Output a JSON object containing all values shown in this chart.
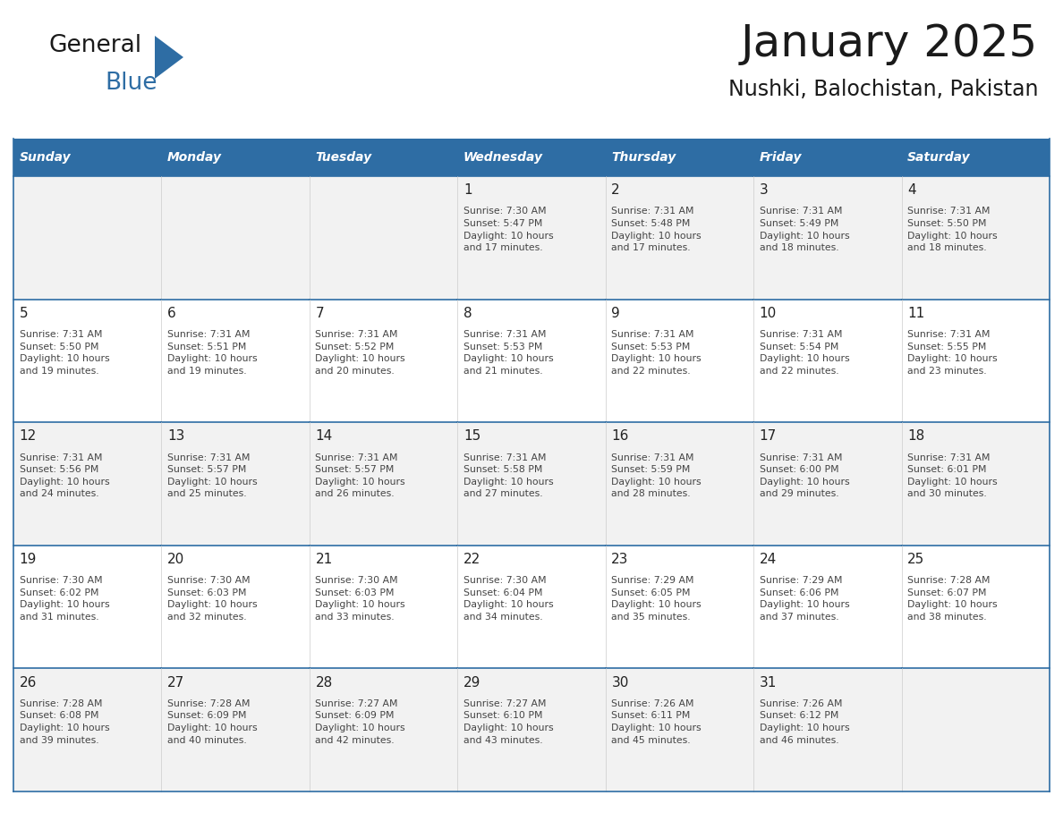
{
  "title": "January 2025",
  "subtitle": "Nushki, Balochistan, Pakistan",
  "days_of_week": [
    "Sunday",
    "Monday",
    "Tuesday",
    "Wednesday",
    "Thursday",
    "Friday",
    "Saturday"
  ],
  "header_bg": "#2E6DA4",
  "header_text": "#FFFFFF",
  "cell_bg_odd": "#F2F2F2",
  "cell_bg_even": "#FFFFFF",
  "cell_border_color": "#2E6DA4",
  "cell_inner_border": "#CCCCCC",
  "day_num_color": "#222222",
  "cell_text_color": "#444444",
  "title_color": "#1a1a1a",
  "subtitle_color": "#1a1a1a",
  "logo_text_color": "#1a1a1a",
  "logo_blue_color": "#2E6DA4",
  "weeks": [
    [
      {
        "day": 0,
        "text": ""
      },
      {
        "day": 0,
        "text": ""
      },
      {
        "day": 0,
        "text": ""
      },
      {
        "day": 1,
        "text": "Sunrise: 7:30 AM\nSunset: 5:47 PM\nDaylight: 10 hours\nand 17 minutes."
      },
      {
        "day": 2,
        "text": "Sunrise: 7:31 AM\nSunset: 5:48 PM\nDaylight: 10 hours\nand 17 minutes."
      },
      {
        "day": 3,
        "text": "Sunrise: 7:31 AM\nSunset: 5:49 PM\nDaylight: 10 hours\nand 18 minutes."
      },
      {
        "day": 4,
        "text": "Sunrise: 7:31 AM\nSunset: 5:50 PM\nDaylight: 10 hours\nand 18 minutes."
      }
    ],
    [
      {
        "day": 5,
        "text": "Sunrise: 7:31 AM\nSunset: 5:50 PM\nDaylight: 10 hours\nand 19 minutes."
      },
      {
        "day": 6,
        "text": "Sunrise: 7:31 AM\nSunset: 5:51 PM\nDaylight: 10 hours\nand 19 minutes."
      },
      {
        "day": 7,
        "text": "Sunrise: 7:31 AM\nSunset: 5:52 PM\nDaylight: 10 hours\nand 20 minutes."
      },
      {
        "day": 8,
        "text": "Sunrise: 7:31 AM\nSunset: 5:53 PM\nDaylight: 10 hours\nand 21 minutes."
      },
      {
        "day": 9,
        "text": "Sunrise: 7:31 AM\nSunset: 5:53 PM\nDaylight: 10 hours\nand 22 minutes."
      },
      {
        "day": 10,
        "text": "Sunrise: 7:31 AM\nSunset: 5:54 PM\nDaylight: 10 hours\nand 22 minutes."
      },
      {
        "day": 11,
        "text": "Sunrise: 7:31 AM\nSunset: 5:55 PM\nDaylight: 10 hours\nand 23 minutes."
      }
    ],
    [
      {
        "day": 12,
        "text": "Sunrise: 7:31 AM\nSunset: 5:56 PM\nDaylight: 10 hours\nand 24 minutes."
      },
      {
        "day": 13,
        "text": "Sunrise: 7:31 AM\nSunset: 5:57 PM\nDaylight: 10 hours\nand 25 minutes."
      },
      {
        "day": 14,
        "text": "Sunrise: 7:31 AM\nSunset: 5:57 PM\nDaylight: 10 hours\nand 26 minutes."
      },
      {
        "day": 15,
        "text": "Sunrise: 7:31 AM\nSunset: 5:58 PM\nDaylight: 10 hours\nand 27 minutes."
      },
      {
        "day": 16,
        "text": "Sunrise: 7:31 AM\nSunset: 5:59 PM\nDaylight: 10 hours\nand 28 minutes."
      },
      {
        "day": 17,
        "text": "Sunrise: 7:31 AM\nSunset: 6:00 PM\nDaylight: 10 hours\nand 29 minutes."
      },
      {
        "day": 18,
        "text": "Sunrise: 7:31 AM\nSunset: 6:01 PM\nDaylight: 10 hours\nand 30 minutes."
      }
    ],
    [
      {
        "day": 19,
        "text": "Sunrise: 7:30 AM\nSunset: 6:02 PM\nDaylight: 10 hours\nand 31 minutes."
      },
      {
        "day": 20,
        "text": "Sunrise: 7:30 AM\nSunset: 6:03 PM\nDaylight: 10 hours\nand 32 minutes."
      },
      {
        "day": 21,
        "text": "Sunrise: 7:30 AM\nSunset: 6:03 PM\nDaylight: 10 hours\nand 33 minutes."
      },
      {
        "day": 22,
        "text": "Sunrise: 7:30 AM\nSunset: 6:04 PM\nDaylight: 10 hours\nand 34 minutes."
      },
      {
        "day": 23,
        "text": "Sunrise: 7:29 AM\nSunset: 6:05 PM\nDaylight: 10 hours\nand 35 minutes."
      },
      {
        "day": 24,
        "text": "Sunrise: 7:29 AM\nSunset: 6:06 PM\nDaylight: 10 hours\nand 37 minutes."
      },
      {
        "day": 25,
        "text": "Sunrise: 7:28 AM\nSunset: 6:07 PM\nDaylight: 10 hours\nand 38 minutes."
      }
    ],
    [
      {
        "day": 26,
        "text": "Sunrise: 7:28 AM\nSunset: 6:08 PM\nDaylight: 10 hours\nand 39 minutes."
      },
      {
        "day": 27,
        "text": "Sunrise: 7:28 AM\nSunset: 6:09 PM\nDaylight: 10 hours\nand 40 minutes."
      },
      {
        "day": 28,
        "text": "Sunrise: 7:27 AM\nSunset: 6:09 PM\nDaylight: 10 hours\nand 42 minutes."
      },
      {
        "day": 29,
        "text": "Sunrise: 7:27 AM\nSunset: 6:10 PM\nDaylight: 10 hours\nand 43 minutes."
      },
      {
        "day": 30,
        "text": "Sunrise: 7:26 AM\nSunset: 6:11 PM\nDaylight: 10 hours\nand 45 minutes."
      },
      {
        "day": 31,
        "text": "Sunrise: 7:26 AM\nSunset: 6:12 PM\nDaylight: 10 hours\nand 46 minutes."
      },
      {
        "day": 0,
        "text": ""
      }
    ]
  ],
  "fig_width": 11.88,
  "fig_height": 9.18,
  "dpi": 100
}
